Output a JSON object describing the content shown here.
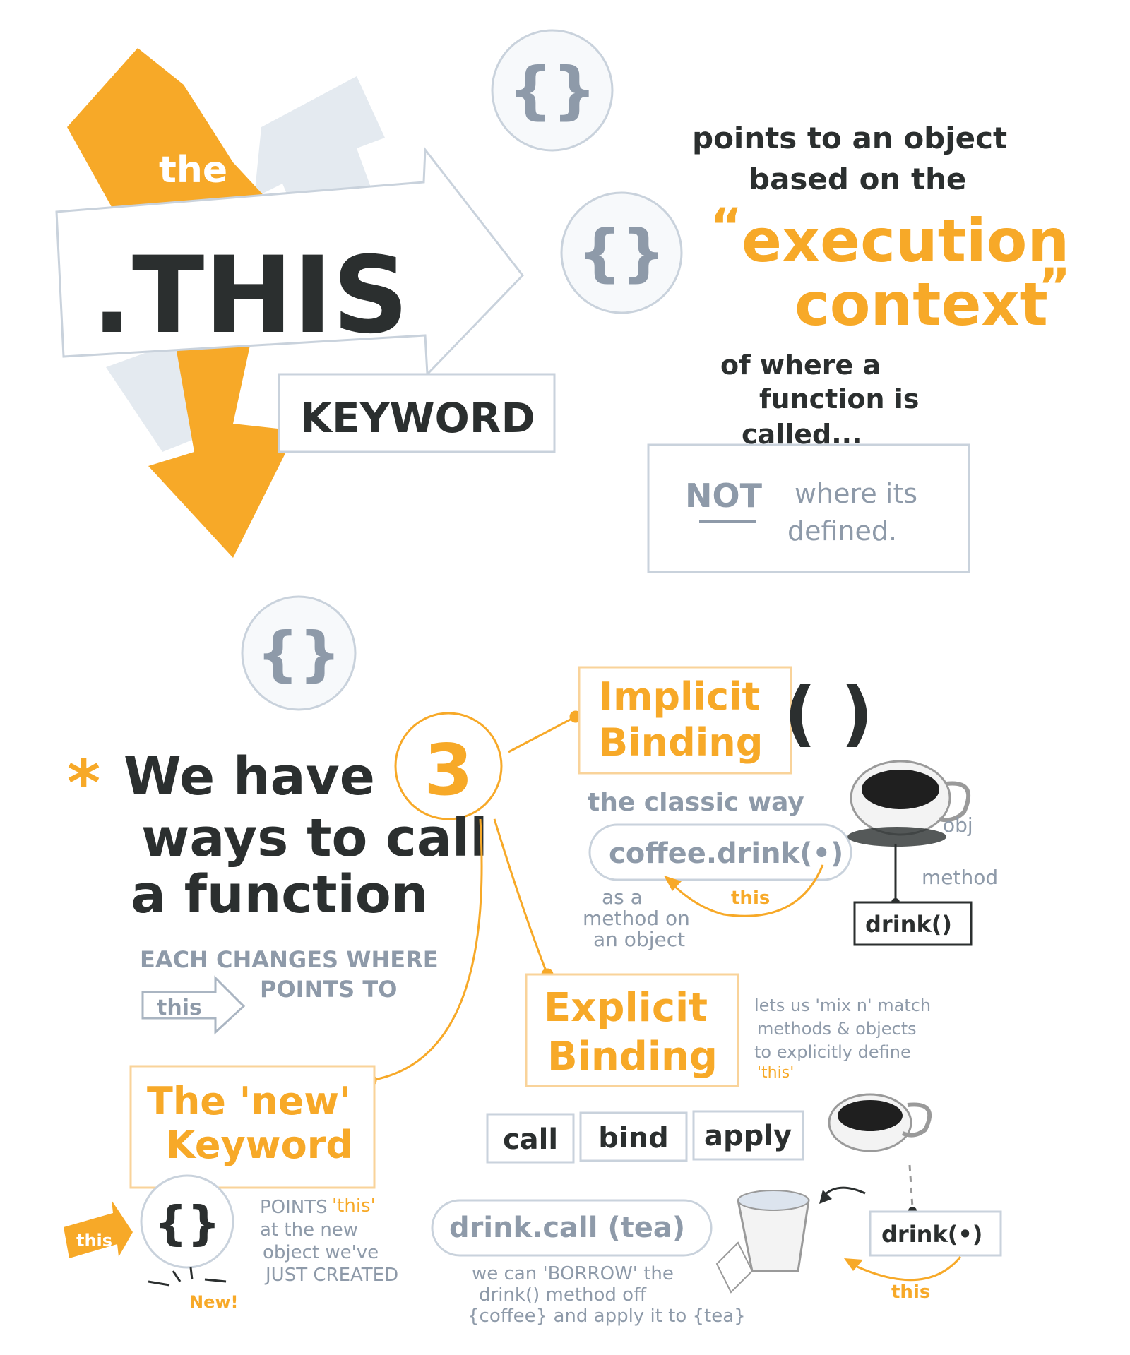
{
  "title": {
    "the": "the",
    "main": ".THIS",
    "keyword": "KEYWORD"
  },
  "definition": {
    "line1": "points to an object",
    "line2": "based on the",
    "quote_open": "“",
    "highlight1": "execution",
    "highlight2": "context",
    "quote_close": "”",
    "line3": "of where a",
    "line4": "function is",
    "line5": "called...",
    "not": "NOT",
    "not_rest1": "where its",
    "not_rest2": "defined."
  },
  "icons": {
    "braces": "{}"
  },
  "ways": {
    "asterisk": "*",
    "line1a": "We have",
    "number": "3",
    "line2": "ways to call",
    "line3": "a function",
    "sub1": "EACH CHANGES WHERE",
    "this_tag": "this",
    "sub2": "POINTS TO"
  },
  "implicit": {
    "title1": "Implicit",
    "title2": "Binding",
    "parens": "( )",
    "subtitle": "the classic way",
    "code": "coffee.drink(•)",
    "this_label": "this",
    "note1": "as a",
    "note2": "method on",
    "note3": "an object",
    "obj_label": "obj",
    "method_label": "method",
    "method_box": "drink()"
  },
  "explicit": {
    "title1": "Explicit",
    "title2": "Binding",
    "note1": "lets us 'mix n' match",
    "note2": "methods & objects",
    "note3": "to explicitly define",
    "note4": "'this'",
    "buttons": [
      "call",
      "bind",
      "apply"
    ],
    "code": "drink.call (tea)",
    "method_box": "drink(•)",
    "this_label": "this",
    "borrow1": "we can 'BORROW' the",
    "borrow2": "drink() method off",
    "borrow3": "{coffee} and apply it to {tea}"
  },
  "newkw": {
    "title1": "The 'new'",
    "title2": "Keyword",
    "this_label": "this",
    "braces": "{}",
    "new_label": "New!",
    "note1a": "POINTS",
    "note1b": "'this'",
    "note2": "at the new",
    "note3": "object we've",
    "note4": "JUST CREATED"
  },
  "colors": {
    "orange": "#f7a928",
    "dark": "#2b2f2f",
    "grey": "#8e9aa9",
    "light_grey": "#e4eaf0"
  }
}
